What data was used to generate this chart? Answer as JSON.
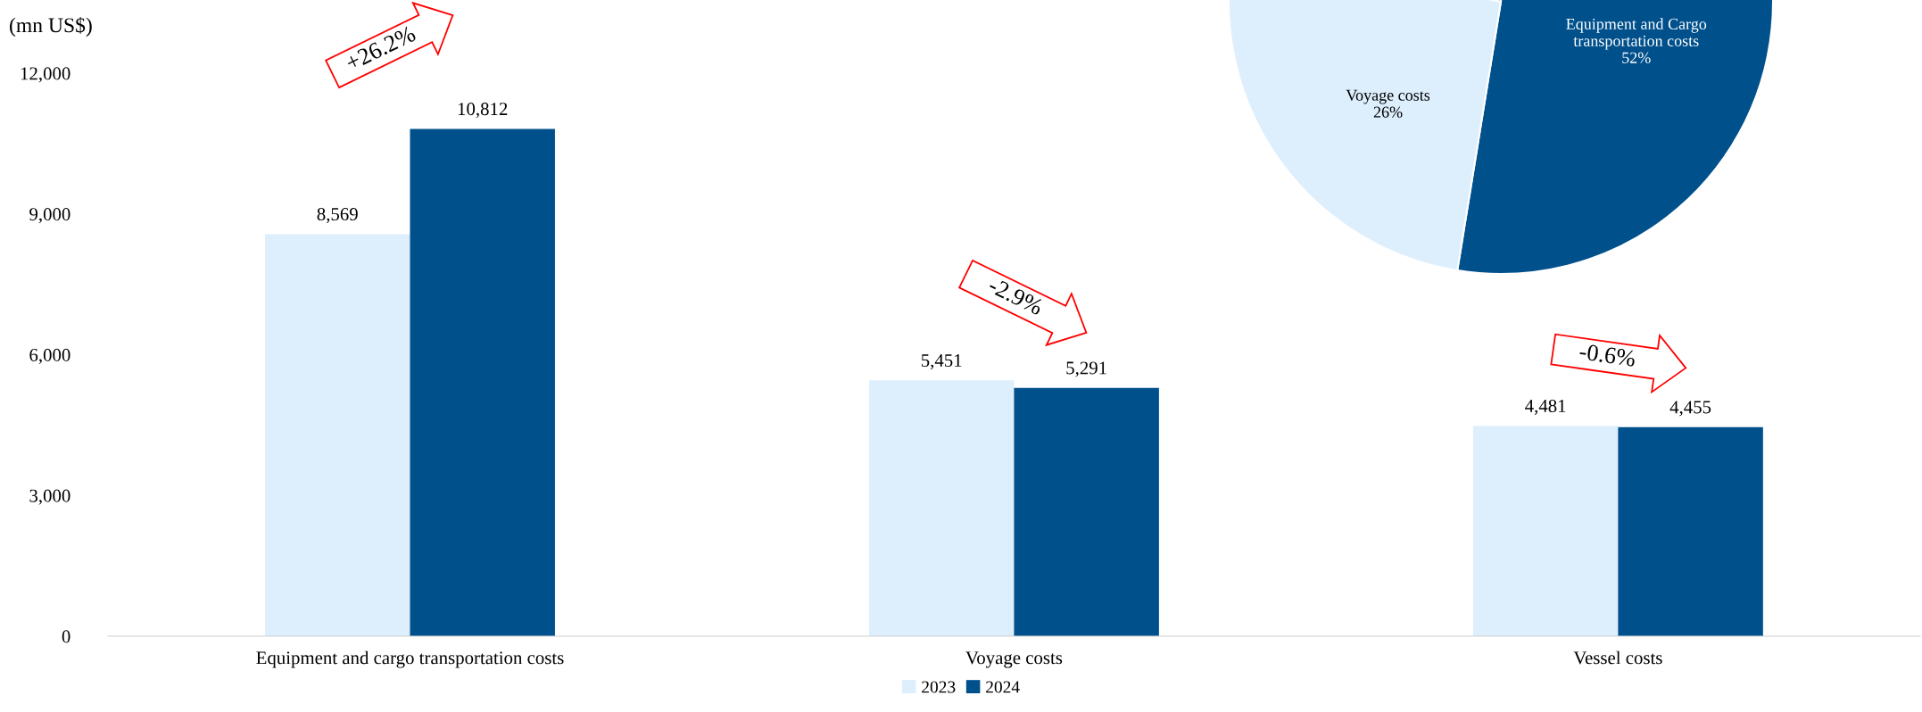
{
  "chart_data": [
    {
      "type": "bar",
      "ylabel": "(mn US$)",
      "categories": [
        "Equipment and cargo transportation costs",
        "Voyage costs",
        "Vessel costs"
      ],
      "series": [
        {
          "name": "2023",
          "color": "#ddeefd",
          "values": [
            8569,
            5451,
            4481
          ],
          "value_labels": [
            "8,569",
            "5,451",
            "4,481"
          ]
        },
        {
          "name": "2024",
          "color": "#00508c",
          "values": [
            10812,
            5291,
            4455
          ],
          "value_labels": [
            "10,812",
            "5,291",
            "4,455"
          ]
        }
      ],
      "ylim": [
        0,
        12000
      ],
      "yticks": [
        0,
        {
          "value": 3000,
          "label": "3,000"
        },
        {
          "value": 6000,
          "label": "6,000"
        },
        {
          "value": 9000,
          "label": "9,000"
        },
        {
          "value": 12000,
          "label": "12,000"
        }
      ],
      "legend": "bottom",
      "grid": false,
      "annotations": [
        "+26.2%",
        "-2.9%",
        "-0.6%"
      ]
    },
    {
      "type": "pie",
      "categories": [
        "Equipment and Cargo\ntransportation costs",
        "Voyage costs",
        null
      ],
      "values": [
        52,
        26,
        22
      ],
      "colors": [
        "#00508c",
        "#ddeefd",
        "#9dc3e6"
      ],
      "value_labels": [
        "52%",
        "26%",
        null
      ]
    }
  ]
}
